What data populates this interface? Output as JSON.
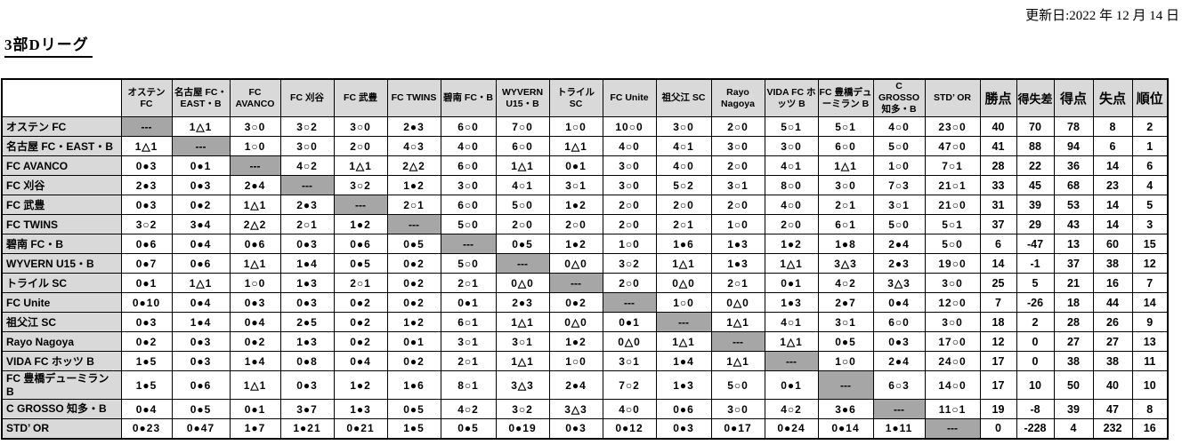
{
  "page": {
    "updated": "更新日:2022 年 12 月 14 日",
    "title": "3部Dリーグ"
  },
  "legend": {
    "win_symbol": "○",
    "loss_symbol": "●",
    "draw_symbol": "△",
    "diagonal": "---"
  },
  "table": {
    "teams": [
      "オステン FC",
      "名古屋 FC・EAST・B",
      "FC AVANCO",
      "FC 刈谷",
      "FC 武豊",
      "FC TWINS",
      "碧南 FC・B",
      "WYVERN U15・B",
      "トライル SC",
      "FC Unite",
      "祖父江 SC",
      "Rayo Nagoya",
      "VIDA FC ホッツ B",
      "FC 豊橋デューミラン B",
      "C GROSSO 知多・B",
      "STD’ OR"
    ],
    "summary_headers": [
      "勝点",
      "得失差",
      "得点",
      "失点",
      "順位"
    ],
    "results": [
      [
        "---",
        "1△1",
        "3○0",
        "3○2",
        "3○0",
        "2●3",
        "6○0",
        "7○0",
        "1○0",
        "10○0",
        "3○0",
        "2○0",
        "5○1",
        "5○1",
        "4○0",
        "23○0"
      ],
      [
        "1△1",
        "---",
        "1○0",
        "3○0",
        "2○0",
        "4○3",
        "4○0",
        "6○0",
        "1△1",
        "4○0",
        "4○1",
        "3○0",
        "3○0",
        "6○0",
        "5○0",
        "47○0"
      ],
      [
        "0●3",
        "0●1",
        "---",
        "4○2",
        "1△1",
        "2△2",
        "6○0",
        "1△1",
        "0●1",
        "3○0",
        "4○0",
        "2○0",
        "4○1",
        "1△1",
        "1○0",
        "7○1"
      ],
      [
        "2●3",
        "0●3",
        "2●4",
        "---",
        "3○2",
        "1●2",
        "3○0",
        "4○1",
        "3○1",
        "3○0",
        "5○2",
        "3○1",
        "8○0",
        "3○0",
        "7○3",
        "21○1"
      ],
      [
        "0●3",
        "0●2",
        "1△1",
        "2●3",
        "---",
        "2○1",
        "6○0",
        "5○0",
        "1●2",
        "2○0",
        "2○0",
        "2○0",
        "4○0",
        "2○1",
        "3○1",
        "21○0"
      ],
      [
        "3○2",
        "3●4",
        "2△2",
        "2○1",
        "1●2",
        "---",
        "5○0",
        "2○0",
        "2○0",
        "2○0",
        "2○1",
        "1○0",
        "2○0",
        "6○1",
        "5○0",
        "5○1"
      ],
      [
        "0●6",
        "0●4",
        "0●6",
        "0●3",
        "0●6",
        "0●5",
        "---",
        "0●5",
        "1●2",
        "1○0",
        "1●6",
        "1●3",
        "1●2",
        "1●8",
        "2●4",
        "5○0"
      ],
      [
        "0●7",
        "0●6",
        "1△1",
        "1●4",
        "0●5",
        "0●2",
        "5○0",
        "---",
        "0△0",
        "3○2",
        "1△1",
        "1●3",
        "1△1",
        "3△3",
        "2●3",
        "19○0"
      ],
      [
        "0●1",
        "1△1",
        "1○0",
        "1●3",
        "2○1",
        "0●2",
        "2○1",
        "0△0",
        "---",
        "2○0",
        "0△0",
        "2○1",
        "0●1",
        "4○2",
        "3△3",
        "3○0"
      ],
      [
        "0●10",
        "0●4",
        "0●3",
        "0●3",
        "0●2",
        "0●2",
        "0●1",
        "2●3",
        "0●2",
        "---",
        "1○0",
        "0△0",
        "1●3",
        "2●7",
        "0●4",
        "12○0"
      ],
      [
        "0●3",
        "1●4",
        "0●4",
        "2●5",
        "0●2",
        "1●2",
        "6○1",
        "1△1",
        "0△0",
        "0●1",
        "---",
        "1△1",
        "4○1",
        "3○1",
        "6○0",
        "3○0"
      ],
      [
        "0●2",
        "0●3",
        "0●2",
        "1●3",
        "0●2",
        "0●1",
        "3○1",
        "3○1",
        "1●2",
        "0△0",
        "1△1",
        "---",
        "1△1",
        "0●5",
        "0●3",
        "17○0"
      ],
      [
        "1●5",
        "0●3",
        "1●4",
        "0●8",
        "0●4",
        "0●2",
        "2○1",
        "1△1",
        "1○0",
        "3○1",
        "1●4",
        "1△1",
        "---",
        "1○0",
        "2●4",
        "24○0"
      ],
      [
        "1●5",
        "0●6",
        "1△1",
        "0●3",
        "1●2",
        "1●6",
        "8○1",
        "3△3",
        "2●4",
        "7○2",
        "1●3",
        "5○0",
        "0●1",
        "---",
        "6○3",
        "14○0"
      ],
      [
        "0●4",
        "0●5",
        "0●1",
        "3●7",
        "1●3",
        "0●5",
        "4○2",
        "3○2",
        "3△3",
        "4○0",
        "0●6",
        "3○0",
        "4○2",
        "3●6",
        "---",
        "11○1"
      ],
      [
        "0●23",
        "0●47",
        "1●7",
        "1●21",
        "0●21",
        "1●5",
        "0●5",
        "0●19",
        "0●3",
        "0●12",
        "0●3",
        "0●17",
        "0●24",
        "0●14",
        "1●11",
        "---"
      ]
    ],
    "summary": [
      [
        40,
        70,
        78,
        8,
        2
      ],
      [
        41,
        88,
        94,
        6,
        1
      ],
      [
        28,
        22,
        36,
        14,
        6
      ],
      [
        33,
        45,
        68,
        23,
        4
      ],
      [
        31,
        39,
        53,
        14,
        5
      ],
      [
        37,
        29,
        43,
        14,
        3
      ],
      [
        6,
        -47,
        13,
        60,
        15
      ],
      [
        14,
        -1,
        37,
        38,
        12
      ],
      [
        25,
        5,
        21,
        16,
        7
      ],
      [
        7,
        -26,
        18,
        44,
        14
      ],
      [
        18,
        2,
        28,
        26,
        9
      ],
      [
        12,
        0,
        27,
        27,
        13
      ],
      [
        17,
        0,
        38,
        38,
        11
      ],
      [
        17,
        10,
        50,
        40,
        10
      ],
      [
        19,
        -8,
        39,
        47,
        8
      ],
      [
        0,
        -228,
        4,
        232,
        16
      ]
    ]
  },
  "colors": {
    "header_bg": "#d9d9d9",
    "diagonal_bg": "#a6a6a6",
    "border": "#000000",
    "text": "#000000"
  }
}
